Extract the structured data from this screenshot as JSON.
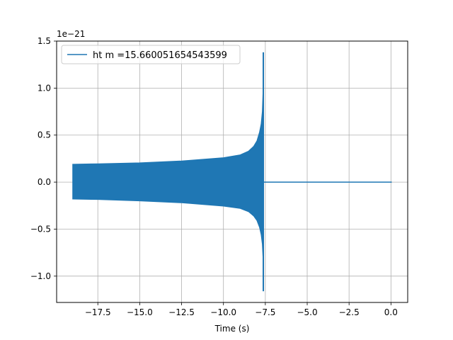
{
  "chart_data": {
    "type": "line",
    "title": "",
    "xlabel": "Time (s)",
    "ylabel": "",
    "y_offset_label": "1e−21",
    "xlim": [
      -19.96,
      1.0
    ],
    "ylim": [
      -1.28,
      1.5
    ],
    "x_ticks": [
      -17.5,
      -15.0,
      -12.5,
      -10.0,
      -7.5,
      -5.0,
      -2.5,
      0.0
    ],
    "x_tick_labels": [
      "−17.5",
      "−15.0",
      "−12.5",
      "−10.0",
      "−7.5",
      "−5.0",
      "−2.5",
      "0.0"
    ],
    "y_ticks": [
      -1.0,
      -0.5,
      0.0,
      0.5,
      1.0,
      1.5
    ],
    "y_tick_labels": [
      "−1.0",
      "−0.5",
      "0.0",
      "0.5",
      "1.0",
      "1.5"
    ],
    "grid": true,
    "legend_position": "top-left",
    "series": [
      {
        "name": "ht m =15.660051654543599",
        "color": "#1f77b4",
        "x_start": -19.0,
        "merger_time": -7.62,
        "x_end": 0.05,
        "envelope_upper": [
          [
            -19.0,
            0.19
          ],
          [
            -17.5,
            0.195
          ],
          [
            -15.0,
            0.205
          ],
          [
            -12.5,
            0.225
          ],
          [
            -10.0,
            0.26
          ],
          [
            -9.0,
            0.29
          ],
          [
            -8.5,
            0.33
          ],
          [
            -8.2,
            0.38
          ],
          [
            -8.0,
            0.44
          ],
          [
            -7.85,
            0.53
          ],
          [
            -7.75,
            0.62
          ],
          [
            -7.68,
            0.75
          ],
          [
            -7.64,
            0.95
          ]
        ],
        "envelope_lower": [
          [
            -19.0,
            -0.18
          ],
          [
            -17.5,
            -0.185
          ],
          [
            -15.0,
            -0.2
          ],
          [
            -12.5,
            -0.22
          ],
          [
            -10.0,
            -0.255
          ],
          [
            -9.0,
            -0.28
          ],
          [
            -8.5,
            -0.315
          ],
          [
            -8.2,
            -0.36
          ],
          [
            -8.0,
            -0.41
          ],
          [
            -7.85,
            -0.48
          ],
          [
            -7.75,
            -0.56
          ],
          [
            -7.68,
            -0.66
          ],
          [
            -7.64,
            -0.8
          ]
        ],
        "peak_max": 1.38,
        "peak_min": -1.16,
        "post_merger_value": 0.0
      }
    ]
  }
}
